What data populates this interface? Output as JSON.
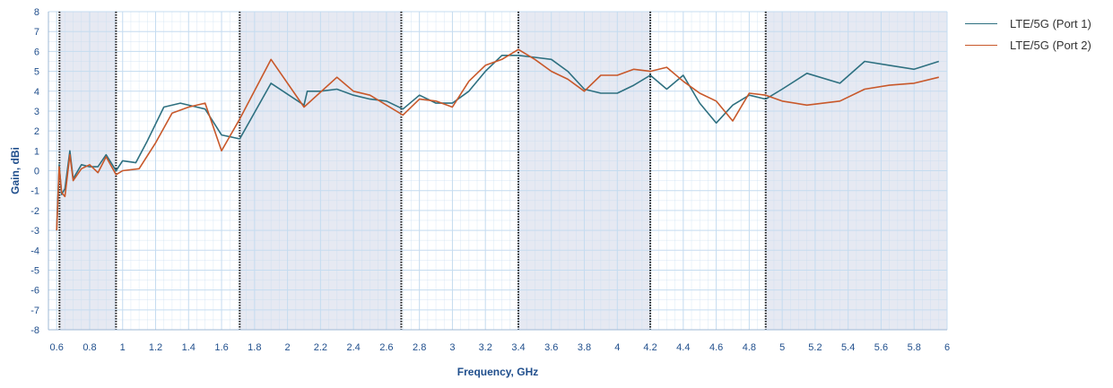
{
  "colors": {
    "band_fill": "#e6e9f2",
    "grid": "#c5dcf0",
    "axis_text": "#1f4e8c",
    "band_line": "#1a1a1a",
    "port1": "#2e7080",
    "port2": "#c8582a"
  },
  "chart_data": {
    "type": "line",
    "xlabel": "Frequency, GHz",
    "ylabel": "Gain, dBi",
    "xlim": [
      0.55,
      6
    ],
    "ylim": [
      -8,
      8
    ],
    "x_ticks": [
      0.6,
      0.8,
      1,
      1.2,
      1.4,
      1.6,
      1.8,
      2,
      2.2,
      2.4,
      2.6,
      2.8,
      3,
      3.2,
      3.4,
      3.6,
      3.8,
      4,
      4.2,
      4.4,
      4.6,
      4.8,
      5,
      5.2,
      5.4,
      5.6,
      5.8,
      6
    ],
    "x_tick_labels": [
      "0.6",
      "0.8",
      "1",
      "1.2",
      "1.4",
      "1.6",
      "1.8",
      "2",
      "2.2",
      "2.4",
      "2.6",
      "2.8",
      "3",
      "3.2",
      "3.4",
      "3.6",
      "3.8",
      "4",
      "4.2",
      "4.4",
      "4.6",
      "4.8",
      "5",
      "5.2",
      "5.4",
      "5.6",
      "5.8",
      "6"
    ],
    "y_ticks": [
      8,
      7,
      6,
      5,
      4,
      3,
      2,
      1,
      0,
      -1,
      -2,
      -3,
      -4,
      -5,
      -6,
      -7,
      -8
    ],
    "y_tick_labels": [
      "8",
      "7",
      "6",
      "5",
      "4",
      "3",
      "2",
      "1",
      "0",
      "-1",
      "-2",
      "-3",
      "-4",
      "-5",
      "-6",
      "-7",
      "-8"
    ],
    "grid": true,
    "legend_position": "top-right",
    "band_boundaries": [
      0.617,
      0.96,
      1.71,
      2.69,
      3.4,
      4.2,
      4.9
    ],
    "shaded_bands": [
      [
        0.617,
        0.96
      ],
      [
        1.71,
        2.69
      ],
      [
        3.4,
        4.2
      ],
      [
        4.9,
        6
      ]
    ],
    "series": [
      {
        "name": "LTE/5G (Port 1)",
        "color_key": "port1",
        "x": [
          0.6,
          0.615,
          0.63,
          0.65,
          0.68,
          0.7,
          0.75,
          0.8,
          0.85,
          0.9,
          0.96,
          1.0,
          1.08,
          1.15,
          1.25,
          1.35,
          1.45,
          1.5,
          1.6,
          1.71,
          1.9,
          2.1,
          2.12,
          2.2,
          2.3,
          2.4,
          2.5,
          2.6,
          2.7,
          2.8,
          2.9,
          3.0,
          3.1,
          3.2,
          3.3,
          3.4,
          3.5,
          3.6,
          3.7,
          3.8,
          3.9,
          4.0,
          4.1,
          4.2,
          4.3,
          4.4,
          4.5,
          4.6,
          4.7,
          4.8,
          4.9,
          5.0,
          5.15,
          5.35,
          5.5,
          5.65,
          5.8,
          5.95
        ],
        "values": [
          -3.0,
          0.3,
          -1.2,
          -0.9,
          1.0,
          -0.4,
          0.3,
          0.2,
          0.2,
          0.8,
          0.0,
          0.5,
          0.4,
          1.5,
          3.2,
          3.4,
          3.2,
          3.1,
          1.8,
          1.6,
          4.4,
          3.3,
          4.0,
          4.0,
          4.1,
          3.8,
          3.6,
          3.5,
          3.1,
          3.8,
          3.4,
          3.4,
          4.0,
          5.0,
          5.8,
          5.8,
          5.7,
          5.6,
          5.0,
          4.1,
          3.9,
          3.9,
          4.3,
          4.8,
          4.1,
          4.8,
          3.4,
          2.4,
          3.3,
          3.8,
          3.6,
          4.1,
          4.9,
          4.4,
          5.5,
          5.3,
          5.1,
          5.5
        ]
      },
      {
        "name": "LTE/5G (Port 2)",
        "color_key": "port2",
        "x": [
          0.6,
          0.615,
          0.63,
          0.65,
          0.68,
          0.7,
          0.75,
          0.8,
          0.85,
          0.9,
          0.96,
          1.0,
          1.1,
          1.2,
          1.3,
          1.4,
          1.5,
          1.6,
          1.71,
          1.9,
          2.1,
          2.3,
          2.4,
          2.5,
          2.6,
          2.7,
          2.8,
          2.9,
          3.0,
          3.1,
          3.2,
          3.3,
          3.4,
          3.5,
          3.6,
          3.7,
          3.8,
          3.9,
          4.0,
          4.1,
          4.2,
          4.3,
          4.4,
          4.5,
          4.6,
          4.7,
          4.8,
          4.9,
          5.0,
          5.15,
          5.35,
          5.5,
          5.65,
          5.8,
          5.95
        ],
        "values": [
          -3.0,
          0.2,
          -1.1,
          -1.3,
          0.8,
          -0.5,
          0.1,
          0.3,
          -0.1,
          0.7,
          -0.2,
          0.0,
          0.1,
          1.4,
          2.9,
          3.2,
          3.4,
          1.0,
          2.6,
          5.6,
          3.2,
          4.7,
          4.0,
          3.8,
          3.3,
          2.8,
          3.6,
          3.5,
          3.2,
          4.5,
          5.3,
          5.6,
          6.1,
          5.6,
          5.0,
          4.6,
          4.0,
          4.8,
          4.8,
          5.1,
          5.0,
          5.2,
          4.5,
          3.9,
          3.5,
          2.5,
          3.9,
          3.8,
          3.5,
          3.3,
          3.5,
          4.1,
          4.3,
          4.4,
          4.7
        ]
      }
    ]
  }
}
